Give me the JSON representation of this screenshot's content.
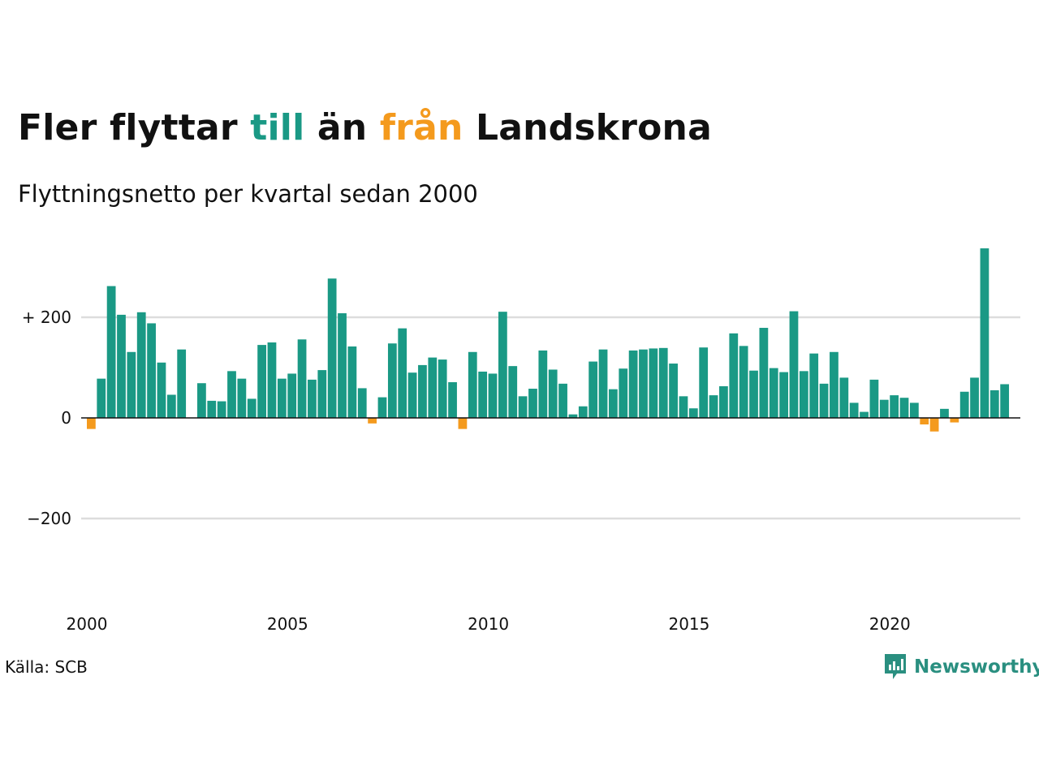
{
  "title": {
    "part1": "Fler flyttar ",
    "part2": "till",
    "part3": " än ",
    "part4": "från",
    "part5": " Landskrona"
  },
  "subtitle": "Flyttningsnetto per kvartal sedan 2000",
  "source": "Källa: SCB",
  "brand": {
    "name": "Newsworthy",
    "icon": "newsworthy-logo-icon"
  },
  "colors": {
    "positive": "#1a9985",
    "negative": "#f49a1d",
    "grid": "#dddddd",
    "baseline": "#111111"
  },
  "chart_data": {
    "type": "bar",
    "title": "Fler flyttar till än från Landskrona",
    "subtitle": "Flyttningsnetto per kvartal sedan 2000",
    "xlabel": "",
    "ylabel": "",
    "ylim": [
      -350,
      375
    ],
    "y_ticks": [
      {
        "value": 200,
        "label": "+ 200"
      },
      {
        "value": 0,
        "label": "0"
      },
      {
        "value": -200,
        "label": "−200"
      }
    ],
    "x_ticks": [
      "2000",
      "2005",
      "2010",
      "2015",
      "2020"
    ],
    "grid": true,
    "start_year": 2000,
    "categories": [
      "2000 K1",
      "2000 K2",
      "2000 K3",
      "2000 K4",
      "2001 K1",
      "2001 K2",
      "2001 K3",
      "2001 K4",
      "2002 K1",
      "2002 K2",
      "2002 K3",
      "2002 K4",
      "2003 K1",
      "2003 K2",
      "2003 K3",
      "2003 K4",
      "2004 K1",
      "2004 K2",
      "2004 K3",
      "2004 K4",
      "2005 K1",
      "2005 K2",
      "2005 K3",
      "2005 K4",
      "2006 K1",
      "2006 K2",
      "2006 K3",
      "2006 K4",
      "2007 K1",
      "2007 K2",
      "2007 K3",
      "2007 K4",
      "2008 K1",
      "2008 K2",
      "2008 K3",
      "2008 K4",
      "2009 K1",
      "2009 K2",
      "2009 K3",
      "2009 K4",
      "2010 K1",
      "2010 K2",
      "2010 K3",
      "2010 K4",
      "2011 K1",
      "2011 K2",
      "2011 K3",
      "2011 K4",
      "2012 K1",
      "2012 K2",
      "2012 K3",
      "2012 K4",
      "2013 K1",
      "2013 K2",
      "2013 K3",
      "2013 K4",
      "2014 K1",
      "2014 K2",
      "2014 K3",
      "2014 K4",
      "2015 K1",
      "2015 K2",
      "2015 K3",
      "2015 K4",
      "2016 K1",
      "2016 K2",
      "2016 K3",
      "2016 K4",
      "2017 K1",
      "2017 K2",
      "2017 K3",
      "2017 K4",
      "2018 K1",
      "2018 K2",
      "2018 K3",
      "2018 K4",
      "2019 K1",
      "2019 K2",
      "2019 K3",
      "2019 K4",
      "2020 K1",
      "2020 K2",
      "2020 K3",
      "2020 K4",
      "2021 K1",
      "2021 K2",
      "2021 K3",
      "2021 K4",
      "2022 K1",
      "2022 K2",
      "2022 K3",
      "2022 K4",
      "2023 K1"
    ],
    "values": [
      -22,
      78,
      262,
      205,
      131,
      210,
      188,
      110,
      46,
      136,
      0,
      69,
      34,
      33,
      93,
      78,
      38,
      145,
      150,
      78,
      88,
      156,
      76,
      95,
      277,
      208,
      142,
      59,
      -11,
      41,
      148,
      178,
      90,
      105,
      120,
      116,
      71,
      -22,
      131,
      92,
      88,
      211,
      103,
      43,
      58,
      134,
      96,
      68,
      7,
      23,
      112,
      136,
      57,
      98,
      134,
      136,
      138,
      139,
      108,
      43,
      19,
      140,
      45,
      63,
      168,
      143,
      94,
      179,
      99,
      91,
      212,
      93,
      128,
      68,
      131,
      80,
      30,
      12,
      76,
      36,
      45,
      40,
      30,
      -13,
      -27,
      18,
      -9,
      52,
      80,
      337,
      55,
      67,
      0
    ]
  }
}
